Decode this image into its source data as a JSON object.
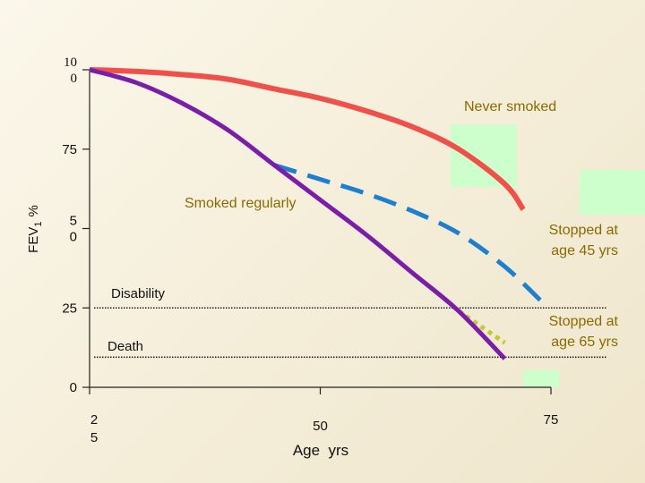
{
  "chart_data": {
    "type": "line",
    "xlabel": "Age  yrs",
    "ylabel": "FEV",
    "ylabel_sub": "1",
    "ylabel_unit": "%",
    "xlim": [
      25,
      75
    ],
    "ylim": [
      0,
      100
    ],
    "x_ticks": [
      {
        "value": 25,
        "label": [
          "2",
          "5"
        ]
      },
      {
        "value": 50,
        "label": [
          "50"
        ]
      },
      {
        "value": 75,
        "label": [
          "75"
        ]
      }
    ],
    "y_ticks": [
      {
        "value": 100,
        "label": [
          "10",
          "0"
        ]
      },
      {
        "value": 75,
        "label": [
          "75"
        ]
      },
      {
        "value": 50,
        "label": [
          "5",
          "0"
        ]
      },
      {
        "value": 25,
        "label": [
          "25"
        ]
      },
      {
        "value": 0,
        "label": [
          "0"
        ]
      }
    ],
    "series": [
      {
        "name": "Never smoked",
        "style": "solid",
        "color": "#f0504a",
        "x": [
          25,
          30,
          35,
          40,
          45,
          50,
          55,
          60,
          65,
          70,
          72
        ],
        "y": [
          100,
          99.5,
          98.5,
          97,
          94,
          91,
          87,
          82,
          75,
          64,
          56
        ]
      },
      {
        "name": "Smoked regularly",
        "style": "solid",
        "color": "#7a1ea8",
        "x": [
          25,
          30,
          35,
          40,
          45,
          50,
          55,
          60,
          65,
          70
        ],
        "y": [
          100,
          96,
          89.5,
          81,
          70,
          59,
          48,
          36,
          24,
          9
        ]
      },
      {
        "name": "Stopped at age 45 yrs",
        "style": "dashed",
        "color": "#1e7fd0",
        "x": [
          45,
          50,
          55,
          60,
          65,
          70,
          74
        ],
        "y": [
          70,
          65.5,
          61,
          55.5,
          48.5,
          38,
          27
        ]
      },
      {
        "name": "Stopped at age 65 yrs",
        "style": "dotted",
        "color": "#c8c832",
        "x": [
          65,
          67.5,
          70
        ],
        "y": [
          24,
          19,
          14
        ]
      }
    ],
    "thresholds": [
      {
        "label": "Disability",
        "value": 25
      },
      {
        "label": "Death",
        "value": 9.5
      }
    ],
    "colors": {
      "axis": "#222222",
      "highlight_box": "#ccffcc",
      "label_text": "#8a6a00"
    },
    "grid": false
  }
}
